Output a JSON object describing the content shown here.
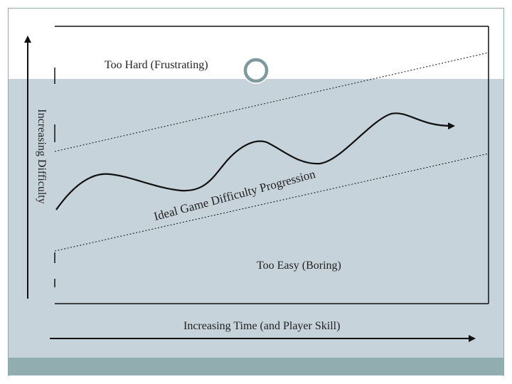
{
  "diagram": {
    "zones": {
      "top": "Too Hard (Frustrating)",
      "bottom": "Too Easy (Boring)"
    },
    "curve_label": "Ideal Game Difficulty Progression",
    "axes": {
      "x": "Increasing Time (and Player Skill)",
      "y": "Increasing Difficulty"
    }
  },
  "colors": {
    "background": "#c7d3da",
    "footer": "#91adb0",
    "stroke": "#111111",
    "ring": "#7f9a9c"
  }
}
